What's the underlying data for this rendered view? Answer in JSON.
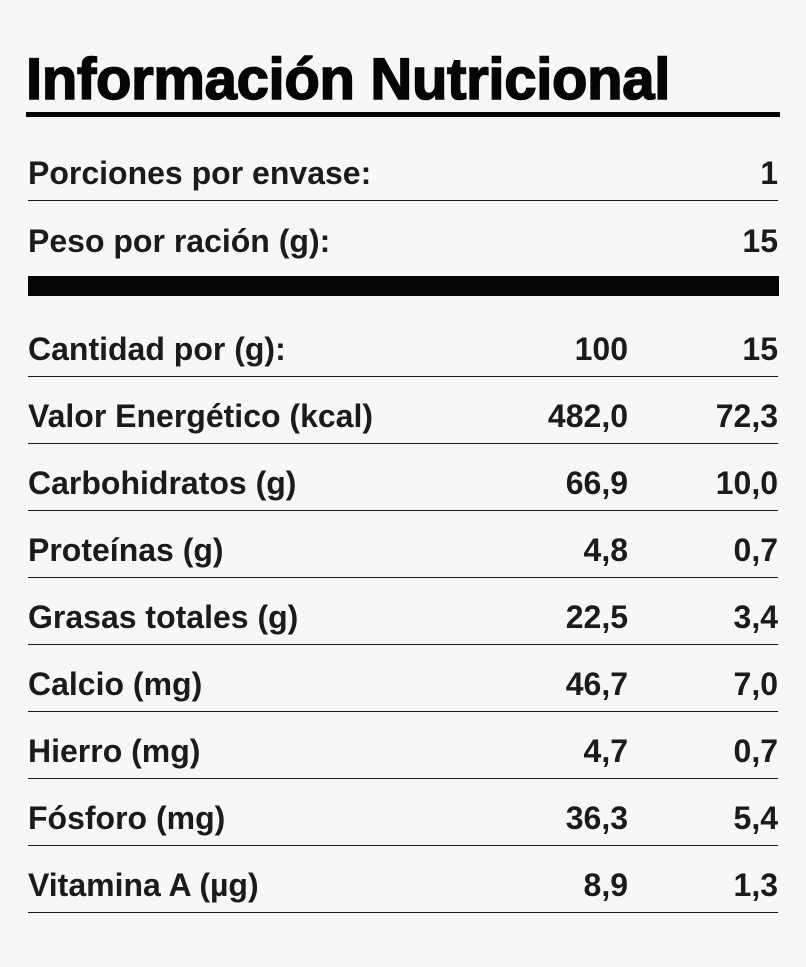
{
  "title": "Información Nutricional",
  "servings": {
    "label": "Porciones por envase:",
    "value": "1"
  },
  "serving_weight": {
    "label": "Peso por ración (g):",
    "value": "15"
  },
  "header": {
    "label": "Cantidad por (g):",
    "per_100": "100",
    "per_serving": "15"
  },
  "nutrients": [
    {
      "label": "Valor Energético (kcal)",
      "per_100": "482,0",
      "per_serving": "72,3"
    },
    {
      "label": "Carbohidratos (g)",
      "per_100": "66,9",
      "per_serving": "10,0"
    },
    {
      "label": "Proteínas (g)",
      "per_100": "4,8",
      "per_serving": "0,7"
    },
    {
      "label": "Grasas totales (g)",
      "per_100": "22,5",
      "per_serving": "3,4"
    },
    {
      "label": "Calcio (mg)",
      "per_100": "46,7",
      "per_serving": "7,0"
    },
    {
      "label": "Hierro (mg)",
      "per_100": "4,7",
      "per_serving": "0,7"
    },
    {
      "label": "Fósforo (mg)",
      "per_100": "36,3",
      "per_serving": "5,4"
    },
    {
      "label": "Vitamina A (µg)",
      "per_100": "8,9",
      "per_serving": "1,3"
    }
  ]
}
